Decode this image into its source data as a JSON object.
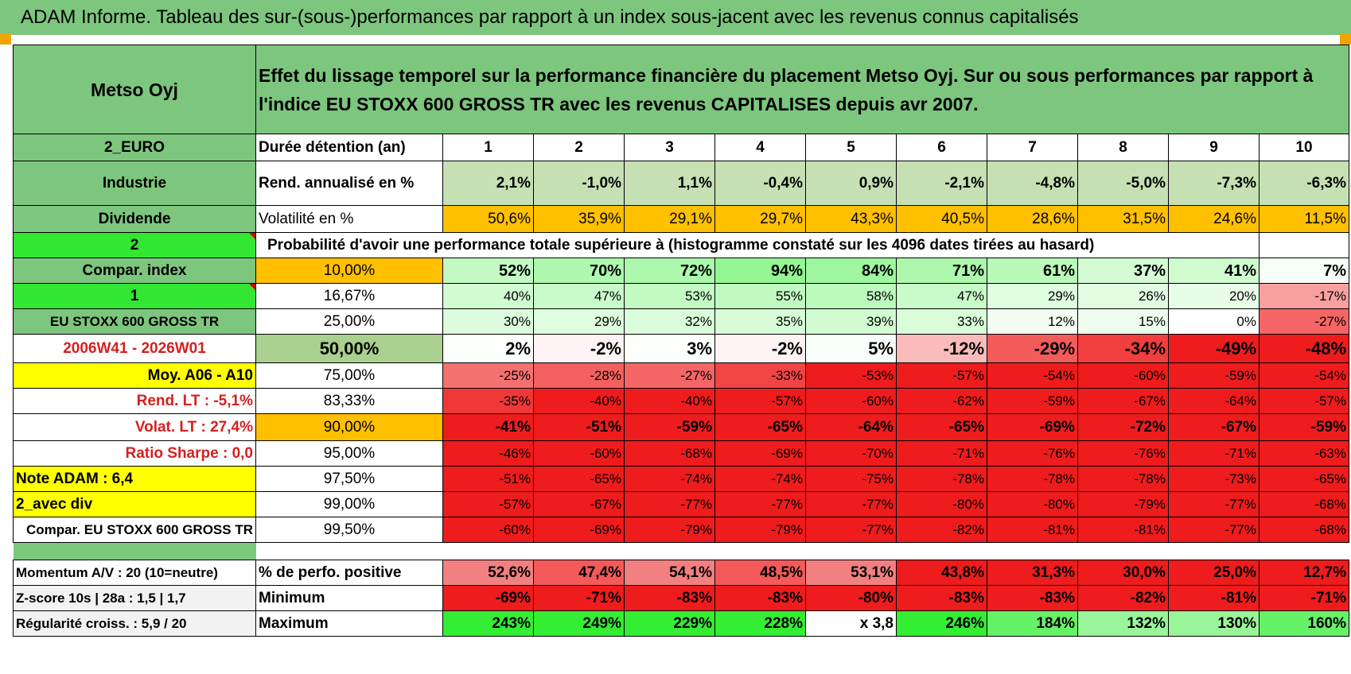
{
  "banner": "ADAM Informe. Tableau des sur-(sous-)performances par rapport à un index sous-jacent avec les revenus connus capitalisés",
  "stock_name": "Metso Oyj",
  "title_text": "Effet du lissage temporel sur la performance financière du placement Metso Oyj. Sur ou sous performances par rapport à l'indice EU STOXX 600 GROSS TR avec les revenus CAPITALISES depuis avr 2007.",
  "left_labels": {
    "currency": "2_EURO",
    "sector": "Industrie",
    "dividend": "Dividende",
    "flag_a": "2",
    "compar_index": "Compar. index",
    "flag_b": "1",
    "index_name": "EU STOXX 600 GROSS TR",
    "period": "2006W41 - 2026W01",
    "moy": "Moy. A06 - A10",
    "rend_lt": "Rend. LT :    -5,1%",
    "volat_lt": "Volat. LT :    27,4%",
    "sharpe": "Ratio Sharpe :     0,0",
    "note": "Note ADAM : 6,4",
    "avec_div": "2_avec div",
    "compar_stoxx": "Compar. EU STOXX 600 GROSS TR"
  },
  "header": {
    "label": "Durée détention (an)",
    "years": [
      "1",
      "2",
      "3",
      "4",
      "5",
      "6",
      "7",
      "8",
      "9",
      "10"
    ]
  },
  "rend_row": {
    "label": "Rend. annualisé en %",
    "values": [
      "2,1%",
      "-1,0%",
      "1,1%",
      "-0,4%",
      "0,9%",
      "-2,1%",
      "-4,8%",
      "-5,0%",
      "-7,3%",
      "-6,3%"
    ]
  },
  "vol_row": {
    "label": "Volatilité en %",
    "values": [
      "50,6%",
      "35,9%",
      "29,1%",
      "29,7%",
      "43,3%",
      "40,5%",
      "28,6%",
      "31,5%",
      "24,6%",
      "11,5%"
    ]
  },
  "prob_title": "Probabilité d'avoir une performance totale supérieure à (histogramme constaté sur les 4096 dates tirées au hasard)",
  "prob_rows": [
    {
      "threshold": "10,00%",
      "values": [
        "52%",
        "70%",
        "72%",
        "94%",
        "84%",
        "71%",
        "61%",
        "37%",
        "41%",
        "7%"
      ]
    },
    {
      "threshold": "16,67%",
      "values": [
        "40%",
        "47%",
        "53%",
        "55%",
        "58%",
        "47%",
        "29%",
        "26%",
        "20%",
        "-17%"
      ]
    },
    {
      "threshold": "25,00%",
      "values": [
        "30%",
        "29%",
        "32%",
        "35%",
        "39%",
        "33%",
        "12%",
        "15%",
        "0%",
        "-27%"
      ]
    },
    {
      "threshold": "50,00%",
      "values": [
        "2%",
        "-2%",
        "3%",
        "-2%",
        "5%",
        "-12%",
        "-29%",
        "-34%",
        "-49%",
        "-48%"
      ]
    },
    {
      "threshold": "75,00%",
      "values": [
        "-25%",
        "-28%",
        "-27%",
        "-33%",
        "-53%",
        "-57%",
        "-54%",
        "-60%",
        "-59%",
        "-54%"
      ]
    },
    {
      "threshold": "83,33%",
      "values": [
        "-35%",
        "-40%",
        "-40%",
        "-57%",
        "-60%",
        "-62%",
        "-59%",
        "-67%",
        "-64%",
        "-57%"
      ]
    },
    {
      "threshold": "90,00%",
      "values": [
        "-41%",
        "-51%",
        "-59%",
        "-65%",
        "-64%",
        "-65%",
        "-69%",
        "-72%",
        "-67%",
        "-59%"
      ]
    },
    {
      "threshold": "95,00%",
      "values": [
        "-46%",
        "-60%",
        "-68%",
        "-69%",
        "-70%",
        "-71%",
        "-76%",
        "-76%",
        "-71%",
        "-63%"
      ]
    },
    {
      "threshold": "97,50%",
      "values": [
        "-51%",
        "-65%",
        "-74%",
        "-74%",
        "-75%",
        "-78%",
        "-78%",
        "-78%",
        "-73%",
        "-65%"
      ]
    },
    {
      "threshold": "99,00%",
      "values": [
        "-57%",
        "-67%",
        "-77%",
        "-77%",
        "-77%",
        "-80%",
        "-80%",
        "-79%",
        "-77%",
        "-68%"
      ]
    },
    {
      "threshold": "99,50%",
      "values": [
        "-60%",
        "-69%",
        "-79%",
        "-79%",
        "-77%",
        "-82%",
        "-81%",
        "-81%",
        "-77%",
        "-68%"
      ]
    }
  ],
  "bottom_rows": [
    {
      "left": "Momentum A/V : 20 (10=neutre)",
      "label": "% de perfo. positive",
      "values": [
        "52,6%",
        "47,4%",
        "54,1%",
        "48,5%",
        "53,1%",
        "43,8%",
        "31,3%",
        "30,0%",
        "25,0%",
        "12,7%"
      ]
    },
    {
      "left": "Z-score 10s | 28a : 1,5 | 1,7",
      "label": "Minimum",
      "values": [
        "-69%",
        "-71%",
        "-83%",
        "-83%",
        "-80%",
        "-83%",
        "-83%",
        "-82%",
        "-81%",
        "-71%"
      ]
    },
    {
      "left": "Régularité croiss. : 5,9 / 20",
      "label": "Maximum",
      "values": [
        "243%",
        "249%",
        "229%",
        "228%",
        "x 3,8",
        "246%",
        "184%",
        "132%",
        "130%",
        "160%"
      ]
    }
  ],
  "colors": {
    "header_green": "#7dc67e",
    "lime": "#32e632",
    "yellow": "#ffff00",
    "orange": "#ffc000",
    "red": "#ee1c1c",
    "light_green": "#c6e0b4",
    "bright_green": "#33ee33"
  }
}
